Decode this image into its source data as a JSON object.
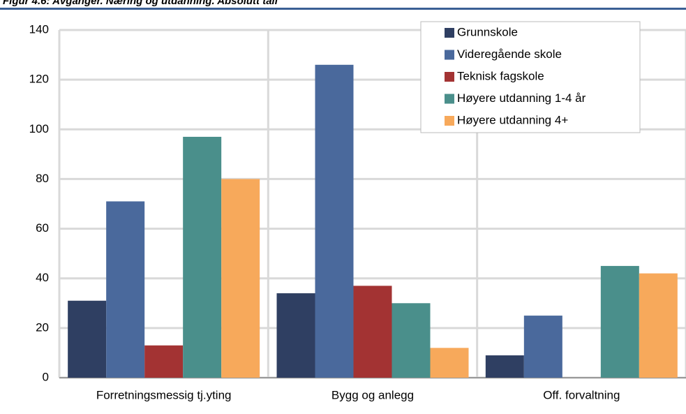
{
  "chart_data": {
    "type": "bar",
    "title": "Figur 4.6:     Avganger. Næring og utdanning. Absolutt tall",
    "categories": [
      "Forretningsmessig tj.yting",
      "Bygg og anlegg",
      "Off. forvaltning"
    ],
    "series": [
      {
        "name": "Grunnskole",
        "color": "#2f3f62",
        "values": [
          31,
          34,
          9
        ]
      },
      {
        "name": "Videregående skole",
        "color": "#4a699c",
        "values": [
          71,
          126,
          25
        ]
      },
      {
        "name": "Teknisk fagskole",
        "color": "#a33333",
        "values": [
          13,
          37,
          0
        ]
      },
      {
        "name": "Høyere utdanning 1-4 år",
        "color": "#4a8f8b",
        "values": [
          97,
          30,
          45
        ]
      },
      {
        "name": "Høyere utdanning 4+",
        "color": "#f7a95b",
        "values": [
          80,
          12,
          42
        ]
      }
    ],
    "ylim": [
      0,
      140
    ],
    "yticks": [
      0,
      20,
      40,
      60,
      80,
      100,
      120,
      140
    ],
    "grid": true,
    "legend": "top-right"
  }
}
